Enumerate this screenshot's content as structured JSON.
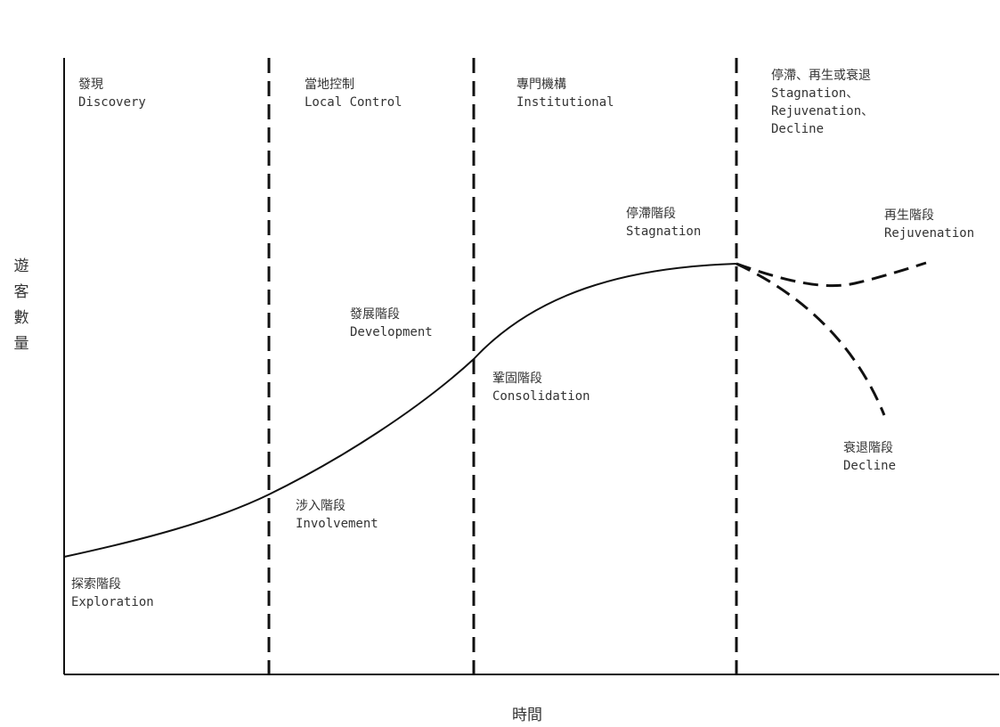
{
  "axes": {
    "y_label": "遊客數量",
    "x_label": "時間"
  },
  "phases": [
    {
      "zh": "發現",
      "en": "Discovery"
    },
    {
      "zh": "當地控制",
      "en": "Local Control"
    },
    {
      "zh": "專門機構",
      "en": "Institutional"
    },
    {
      "zh": "停滯、再生或衰退",
      "en": "Stagnation、",
      "en2": "Rejuvenation、",
      "en3": "Decline"
    }
  ],
  "stages": [
    {
      "zh": "探索階段",
      "en": "Exploration"
    },
    {
      "zh": "涉入階段",
      "en": "Involvement"
    },
    {
      "zh": "發展階段",
      "en": "Development"
    },
    {
      "zh": "鞏固階段",
      "en": "Consolidation"
    },
    {
      "zh": "停滯階段",
      "en": "Stagnation"
    },
    {
      "zh": "再生階段",
      "en": "Rejuvenation"
    },
    {
      "zh": "衰退階段",
      "en": "Decline"
    }
  ],
  "colors": {
    "line": "#111111",
    "text": "#333333",
    "background": "#ffffff"
  }
}
